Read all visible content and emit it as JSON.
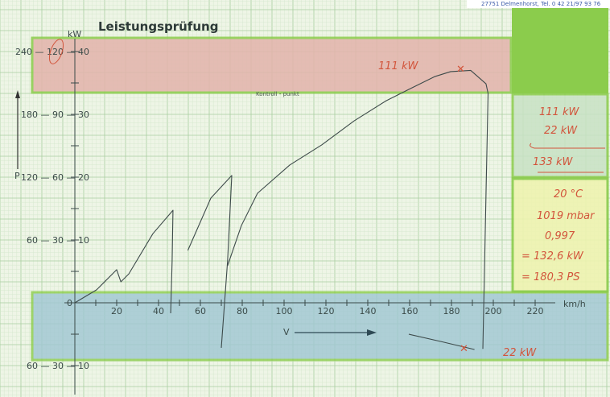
{
  "header_text": "27751 Delmenhorst, Tel. 0 42 21/97 93 76",
  "chart_data": {
    "type": "line",
    "title": "Leistungsprüfung",
    "xlabel": "V",
    "x_unit": "km/h",
    "ylabel": "P",
    "y_unit": "kW",
    "xlim": [
      0,
      230
    ],
    "ylim": [
      -30,
      120
    ],
    "x_ticks": [
      "20",
      "40",
      "60",
      "80",
      "100",
      "120",
      "140",
      "160",
      "180",
      "200",
      "220"
    ],
    "y_tick_rows": [
      "240 — 120 — 40",
      "180 — 90 — 30",
      "120 — 60 — 20",
      "60 — 30 — 10",
      "0",
      "60 — 30 — 10"
    ],
    "grid": true,
    "control_point_label": "Kontroll - punkt",
    "series": [
      {
        "values": [
          [
            0,
            0
          ],
          [
            10.4,
            6.2
          ],
          [
            20,
            15.8
          ],
          [
            22,
            10
          ],
          [
            25.8,
            13.8
          ],
          [
            37.3,
            33
          ],
          [
            46.9,
            44.2
          ],
          [
            46.5,
            20
          ],
          [
            45.8,
            -5
          ]
        ]
      },
      {
        "values": [
          [
            54,
            25
          ],
          [
            65,
            50
          ],
          [
            75,
            60.8
          ],
          [
            73,
            20
          ],
          [
            70,
            -21.5
          ]
        ]
      },
      {
        "values": [
          [
            73,
            17.7
          ],
          [
            79.6,
            36.9
          ],
          [
            87.3,
            52.3
          ],
          [
            102.7,
            65.8
          ],
          [
            118,
            75.4
          ],
          [
            133.5,
            86.9
          ],
          [
            148.8,
            96.5
          ],
          [
            164.2,
            104.2
          ],
          [
            171.9,
            108
          ],
          [
            179.6,
            110.4
          ],
          [
            189.2,
            111
          ],
          [
            196.5,
            104.6
          ],
          [
            197.5,
            100
          ],
          [
            195,
            -22
          ]
        ]
      },
      {
        "values": [
          [
            159.6,
            -15
          ],
          [
            175,
            -18.5
          ],
          [
            191,
            -22.3
          ]
        ]
      }
    ],
    "annotations": {
      "peak_label": "111 kW",
      "loss_label": "22 kW",
      "wheel_power": "111 kW",
      "loss_power": "22 kW",
      "engine_power": "133 kW",
      "temperature": "20 °C",
      "pressure": "1019 mbar",
      "correction_factor": "0,997",
      "corrected_kw": "= 132,6 kW",
      "corrected_ps": "= 180,3 PS"
    },
    "colors": {
      "grid_bg": "#eef5e6",
      "grid_line": "#b9d7b0",
      "red_band": "#e8b8b0",
      "blue_band": "#a9cbd6",
      "green": "#8bcc4c",
      "yellow": "#f0f3b0",
      "curve": "#3d4a4a",
      "ink_red": "#d2553c"
    }
  }
}
